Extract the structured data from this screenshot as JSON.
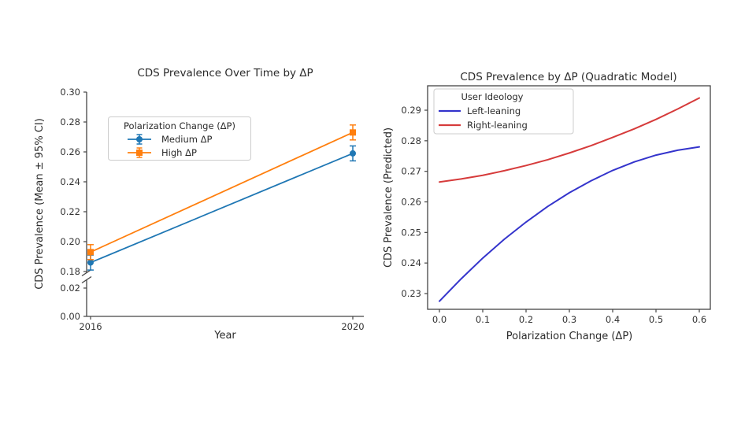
{
  "chart_data": [
    {
      "type": "line",
      "title": "CDS Prevalence Over Time by ΔP",
      "xlabel": "Year",
      "ylabel": "CDS Prevalence (Mean ± 95% CI)",
      "legend_title": "Polarization Change (ΔP)",
      "legend_position": "upper left",
      "x": [
        2016,
        2020
      ],
      "x_tick_labels": [
        "2016",
        "2020"
      ],
      "y_axis_broken": true,
      "y_lower_tick_labels": [
        "0.00",
        "0.02"
      ],
      "y_upper_tick_labels": [
        "0.18",
        "0.20",
        "0.22",
        "0.24",
        "0.26",
        "0.28",
        "0.30"
      ],
      "grid": false,
      "series": [
        {
          "name": "Medium ΔP",
          "color": "#1f77b4",
          "marker": "circle",
          "values": [
            0.186,
            0.259
          ],
          "ci95": [
            0.005,
            0.005
          ]
        },
        {
          "name": "High ΔP",
          "color": "#ff7f0e",
          "marker": "square",
          "values": [
            0.193,
            0.273
          ],
          "ci95": [
            0.005,
            0.005
          ]
        }
      ]
    },
    {
      "type": "line",
      "title": "CDS Prevalence by ΔP (Quadratic Model)",
      "xlabel": "Polarization Change (ΔP)",
      "ylabel": "CDS Prevalence (Predicted)",
      "legend_title": "User Ideology",
      "legend_position": "upper left",
      "x": [
        0.0,
        0.05,
        0.1,
        0.15,
        0.2,
        0.25,
        0.3,
        0.35,
        0.4,
        0.45,
        0.5,
        0.55,
        0.6
      ],
      "x_tick_labels": [
        "0.0",
        "0.1",
        "0.2",
        "0.3",
        "0.4",
        "0.5",
        "0.6"
      ],
      "y_tick_labels": [
        "0.23",
        "0.24",
        "0.25",
        "0.26",
        "0.27",
        "0.28",
        "0.29"
      ],
      "grid": false,
      "series": [
        {
          "name": "Left-leaning",
          "color": "#3434cc",
          "values": [
            0.2275,
            0.2348,
            0.2416,
            0.2478,
            0.2534,
            0.2585,
            0.263,
            0.2669,
            0.2703,
            0.2731,
            0.2753,
            0.2769,
            0.278
          ]
        },
        {
          "name": "Right-leaning",
          "color": "#d63b3b",
          "values": [
            0.2665,
            0.2675,
            0.2687,
            0.2702,
            0.2719,
            0.2738,
            0.276,
            0.2784,
            0.2811,
            0.2839,
            0.287,
            0.2904,
            0.294
          ]
        }
      ]
    }
  ]
}
